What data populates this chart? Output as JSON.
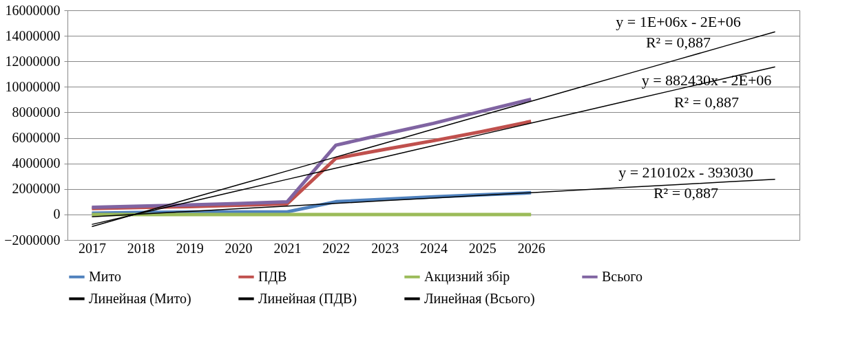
{
  "chart_data": {
    "type": "line",
    "categories": [
      "2017",
      "2018",
      "2019",
      "2020",
      "2021",
      "2022",
      "2023",
      "2024",
      "2025",
      "2026",
      null,
      null,
      null,
      null,
      null
    ],
    "series": [
      {
        "name": "Мито",
        "color": "#4f81bd",
        "values": [
          100000,
          150000,
          200000,
          200000,
          200000,
          1000000,
          1200000,
          1380000,
          1550000,
          1700000,
          null,
          null,
          null,
          null,
          null
        ]
      },
      {
        "name": "ПДВ",
        "color": "#c0504d",
        "values": [
          470000,
          550000,
          620000,
          720000,
          830000,
          4400000,
          5100000,
          5780000,
          6500000,
          7300000,
          null,
          null,
          null,
          null,
          null
        ]
      },
      {
        "name": "Акцизний збір",
        "color": "#9bbb59",
        "values": [
          0,
          0,
          0,
          0,
          0,
          0,
          0,
          0,
          0,
          0,
          null,
          null,
          null,
          null,
          null
        ]
      },
      {
        "name": "Всього",
        "color": "#8064a2",
        "values": [
          560000,
          650000,
          750000,
          850000,
          990000,
          5430000,
          6300000,
          7140000,
          8100000,
          9030000,
          null,
          null,
          null,
          null,
          null
        ]
      },
      {
        "name": "Линейная (Мито)",
        "color": "#000000",
        "values": [
          -180000,
          30000,
          240000,
          450000,
          660000,
          870000,
          1080000,
          1290000,
          1500000,
          1710000,
          1920000,
          2130000,
          2340000,
          2550000,
          2760000
        ]
      },
      {
        "name": "Линейная (ПДВ)",
        "color": "#000000",
        "values": [
          -780000,
          100000,
          980000,
          1870000,
          2750000,
          3630000,
          4510000,
          5400000,
          6280000,
          7160000,
          8040000,
          8930000,
          9810000,
          10690000,
          11570000
        ]
      },
      {
        "name": "Линейная (Всього)",
        "color": "#000000",
        "values": [
          -950000,
          140000,
          1230000,
          2320000,
          3410000,
          4500000,
          5590000,
          6690000,
          7780000,
          8870000,
          9960000,
          11050000,
          12140000,
          13230000,
          14320000
        ]
      }
    ],
    "ylim": [
      -2000000,
      16000000
    ],
    "yticks": [
      -2000000,
      0,
      2000000,
      4000000,
      6000000,
      8000000,
      10000000,
      12000000,
      14000000,
      16000000
    ],
    "grid": "y",
    "legend": "bottom",
    "marker": "none",
    "line_style": "solid",
    "annotations": [
      "y = 1E+06x - 2E+06",
      "R² = 0,887",
      "y = 882430x - 2E+06",
      "R² = 0,887",
      "y = 210102x - 393030",
      "R² = 0,887"
    ]
  }
}
